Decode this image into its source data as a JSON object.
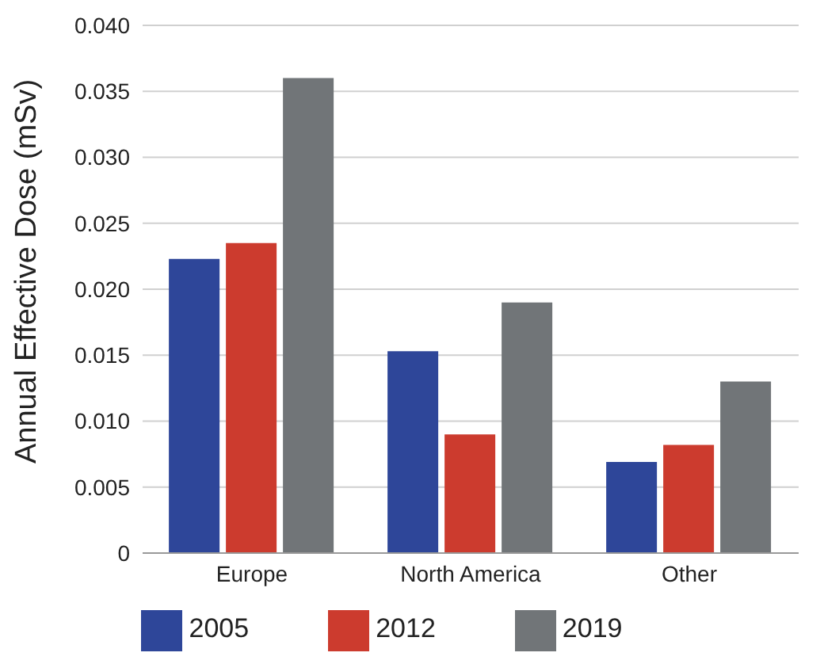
{
  "chart_data": {
    "type": "bar",
    "ylabel": "Annual Effective Dose (mSv)",
    "categories": [
      "Europe",
      "North America",
      "Other"
    ],
    "series": [
      {
        "name": "2005",
        "color": "#2e4699",
        "values": [
          0.0223,
          0.0153,
          0.0069
        ]
      },
      {
        "name": "2012",
        "color": "#cc3b2e",
        "values": [
          0.0235,
          0.009,
          0.0082
        ]
      },
      {
        "name": "2019",
        "color": "#717578",
        "values": [
          0.036,
          0.019,
          0.013
        ]
      }
    ],
    "ylim": [
      0,
      0.04
    ],
    "yticks": [
      0,
      0.005,
      {
        "value": 0.01,
        "label": "0.010"
      },
      0.015,
      {
        "value": 0.02,
        "label": "0.020"
      },
      0.025,
      {
        "value": 0.03,
        "label": "0.030"
      },
      0.035,
      {
        "value": 0.04,
        "label": "0.040"
      }
    ],
    "grid": "y",
    "legend": "bottom"
  }
}
